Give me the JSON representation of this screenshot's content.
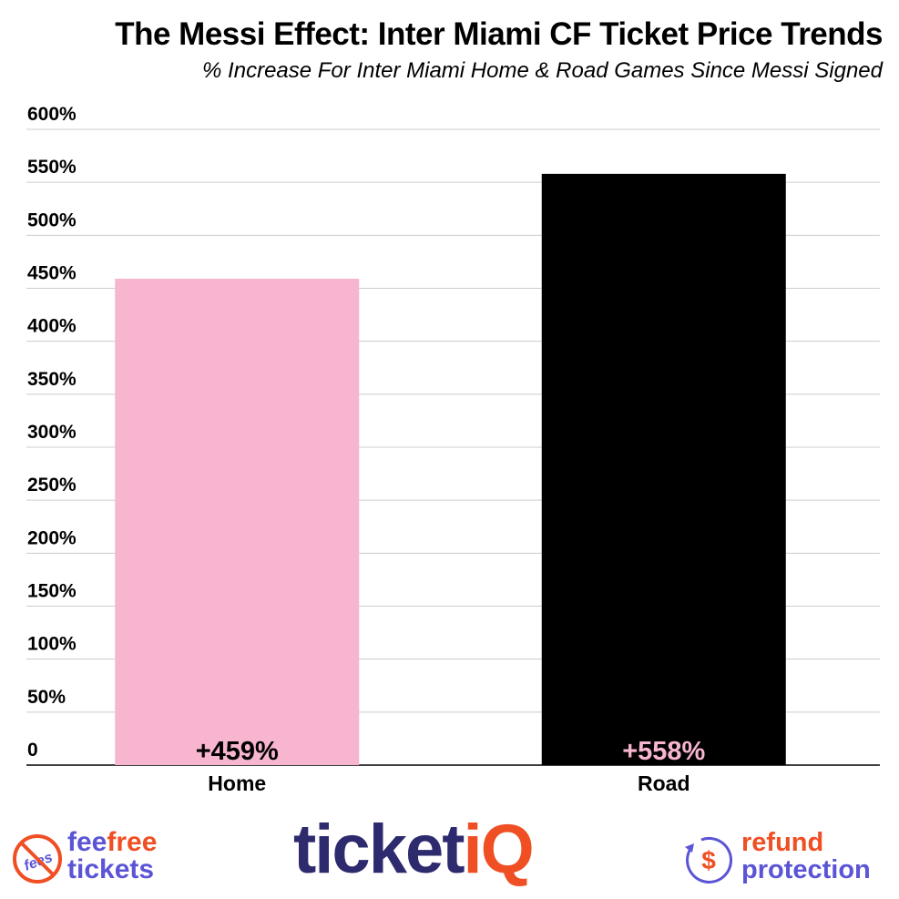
{
  "chart_data": {
    "type": "bar",
    "title": "The Messi Effect: Inter Miami CF Ticket Price Trends",
    "subtitle": "% Increase For Inter Miami Home & Road Games Since Messi Signed",
    "categories": [
      "Home",
      "Road"
    ],
    "values": [
      459,
      558
    ],
    "data_labels": [
      "+459%",
      "+558%"
    ],
    "bar_colors": [
      "#f7b5cf",
      "#000000"
    ],
    "label_colors": [
      "#000000",
      "#f7b5cf"
    ],
    "ylim": [
      0,
      600
    ],
    "yticks": [
      0,
      50,
      100,
      150,
      200,
      250,
      300,
      350,
      400,
      450,
      500,
      550,
      600
    ],
    "ytick_labels": [
      "0",
      "50%",
      "100%",
      "150%",
      "200%",
      "250%",
      "300%",
      "350%",
      "400%",
      "450%",
      "500%",
      "550%",
      "600%"
    ],
    "grid": true,
    "xlabel": "",
    "ylabel": ""
  },
  "footer": {
    "feefree": {
      "part1": "fee",
      "part2": "free",
      "line2": "tickets",
      "badge": "fees"
    },
    "ticketiq": {
      "part1": "ticket",
      "part2": "iQ"
    },
    "refund": {
      "line1": "refund",
      "line2": "protection",
      "symbol": "$"
    },
    "colors": {
      "navy": "#2d2a6e",
      "orange": "#f04e23",
      "purple": "#5b55d6"
    }
  }
}
